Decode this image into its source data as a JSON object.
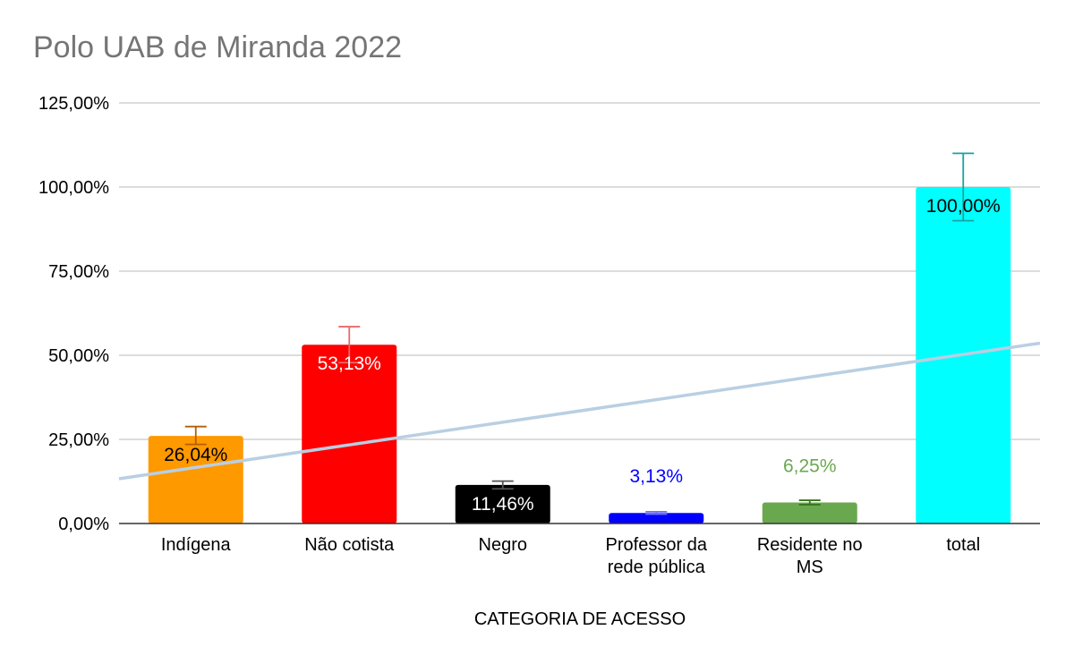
{
  "chart_data": {
    "type": "bar",
    "title": "Polo UAB de Miranda 2022",
    "xlabel": "CATEGORIA DE ACESSO",
    "ylabel": "",
    "ylim": [
      0,
      125
    ],
    "y_ticks": [
      "0,00%",
      "25,00%",
      "50,00%",
      "75,00%",
      "100,00%",
      "125,00%"
    ],
    "categories": [
      [
        "Indígena"
      ],
      [
        "Não cotista"
      ],
      [
        "Negro"
      ],
      [
        "Professor da",
        "rede pública"
      ],
      [
        "Residente no",
        "MS"
      ],
      [
        "total"
      ]
    ],
    "values": [
      26.04,
      53.13,
      11.46,
      3.13,
      6.25,
      100.0
    ],
    "value_labels": [
      "26,04%",
      "53,13%",
      "11,46%",
      "3,13%",
      "6,25%",
      "100,00%"
    ],
    "bar_colors": [
      "#ff9900",
      "#ff0000",
      "#000000",
      "#0000ff",
      "#6aa84f",
      "#00ffff"
    ],
    "label_colors": [
      "#000000",
      "#ffffff",
      "#ffffff",
      "#0000ff",
      "#6aa84f",
      "#000000"
    ],
    "label_position": [
      "inside",
      "inside",
      "inside",
      "above",
      "above",
      "inside"
    ],
    "error_bars": [
      {
        "low": 23.5,
        "high": 28.8,
        "color": "#b45f06"
      },
      {
        "low": 47.8,
        "high": 58.5,
        "color": "#ea6a6a"
      },
      {
        "low": 10.3,
        "high": 12.6,
        "color": "#555555"
      },
      {
        "low": 2.8,
        "high": 3.5,
        "color": "#6d6df5"
      },
      {
        "low": 5.6,
        "high": 6.9,
        "color": "#38761d"
      },
      {
        "low": 90.0,
        "high": 110.0,
        "color": "#19a3a3"
      }
    ],
    "trendline": {
      "color": "#b9cfe3",
      "start_value": 13.3,
      "end_value": 53.6
    },
    "grid": true,
    "legend": "none"
  }
}
